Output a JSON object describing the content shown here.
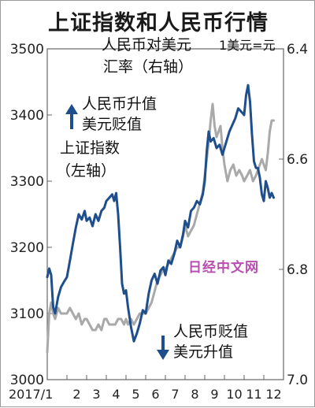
{
  "title": "上证指数和人民币行情",
  "chart_data": {
    "type": "line",
    "title": "上证指数和人民币行情",
    "x_labels": [
      "2017/1",
      "2",
      "3",
      "4",
      "5",
      "6",
      "7",
      "8",
      "9",
      "10",
      "11",
      "12"
    ],
    "left_axis": {
      "ylim": [
        3000,
        3500
      ],
      "ticks": [
        3000,
        3100,
        3200,
        3300,
        3400,
        3500
      ]
    },
    "right_axis": {
      "ylim": [
        7.0,
        6.4
      ],
      "inverted": true,
      "unit": "1美元=元",
      "ticks": [
        "6.4",
        "6.6",
        "6.8",
        "7.0"
      ]
    },
    "series": [
      {
        "name": "上证指数（左轴）",
        "axis": "left",
        "color": "#1f4e8c",
        "points": [
          [
            0.0,
            3155
          ],
          [
            0.1,
            3168
          ],
          [
            0.2,
            3158
          ],
          [
            0.3,
            3110
          ],
          [
            0.4,
            3100
          ],
          [
            0.55,
            3125
          ],
          [
            0.7,
            3140
          ],
          [
            0.85,
            3148
          ],
          [
            1.0,
            3155
          ],
          [
            1.15,
            3180
          ],
          [
            1.3,
            3205
          ],
          [
            1.45,
            3230
          ],
          [
            1.6,
            3250
          ],
          [
            1.75,
            3242
          ],
          [
            1.9,
            3255
          ],
          [
            2.0,
            3240
          ],
          [
            2.15,
            3245
          ],
          [
            2.3,
            3232
          ],
          [
            2.45,
            3250
          ],
          [
            2.6,
            3240
          ],
          [
            2.75,
            3255
          ],
          [
            2.9,
            3260
          ],
          [
            3.0,
            3270
          ],
          [
            3.15,
            3275
          ],
          [
            3.3,
            3280
          ],
          [
            3.4,
            3270
          ],
          [
            3.5,
            3282
          ],
          [
            3.6,
            3250
          ],
          [
            3.7,
            3200
          ],
          [
            3.8,
            3145
          ],
          [
            3.9,
            3130
          ],
          [
            4.0,
            3135
          ],
          [
            4.1,
            3110
          ],
          [
            4.25,
            3080
          ],
          [
            4.4,
            3058
          ],
          [
            4.55,
            3070
          ],
          [
            4.7,
            3085
          ],
          [
            4.85,
            3105
          ],
          [
            5.0,
            3100
          ],
          [
            5.15,
            3130
          ],
          [
            5.3,
            3150
          ],
          [
            5.45,
            3160
          ],
          [
            5.6,
            3145
          ],
          [
            5.75,
            3165
          ],
          [
            5.9,
            3170
          ],
          [
            6.0,
            3158
          ],
          [
            6.15,
            3180
          ],
          [
            6.3,
            3175
          ],
          [
            6.45,
            3190
          ],
          [
            6.6,
            3210
          ],
          [
            6.75,
            3200
          ],
          [
            6.9,
            3220
          ],
          [
            7.0,
            3240
          ],
          [
            7.15,
            3230
          ],
          [
            7.3,
            3255
          ],
          [
            7.45,
            3260
          ],
          [
            7.6,
            3270
          ],
          [
            7.75,
            3265
          ],
          [
            7.9,
            3280
          ],
          [
            8.0,
            3300
          ],
          [
            8.1,
            3345
          ],
          [
            8.2,
            3375
          ],
          [
            8.3,
            3360
          ],
          [
            8.45,
            3365
          ],
          [
            8.6,
            3350
          ],
          [
            8.75,
            3355
          ],
          [
            8.9,
            3340
          ],
          [
            9.0,
            3350
          ],
          [
            9.1,
            3360
          ],
          [
            9.25,
            3375
          ],
          [
            9.4,
            3385
          ],
          [
            9.55,
            3395
          ],
          [
            9.7,
            3410
          ],
          [
            9.85,
            3405
          ],
          [
            10.0,
            3400
          ],
          [
            10.1,
            3430
          ],
          [
            10.2,
            3445
          ],
          [
            10.3,
            3420
          ],
          [
            10.4,
            3370
          ],
          [
            10.5,
            3330
          ],
          [
            10.6,
            3320
          ],
          [
            10.7,
            3320
          ],
          [
            10.8,
            3305
          ],
          [
            10.9,
            3280
          ],
          [
            11.0,
            3270
          ],
          [
            11.1,
            3300
          ],
          [
            11.2,
            3290
          ],
          [
            11.3,
            3275
          ],
          [
            11.4,
            3282
          ],
          [
            11.5,
            3275
          ]
        ]
      },
      {
        "name": "人民币对美元汇率（右轴）",
        "axis": "right",
        "color": "#a9a9a9",
        "points": [
          [
            0.0,
            6.95
          ],
          [
            0.1,
            6.88
          ],
          [
            0.2,
            6.86
          ],
          [
            0.3,
            6.88
          ],
          [
            0.4,
            6.89
          ],
          [
            0.55,
            6.87
          ],
          [
            0.7,
            6.88
          ],
          [
            0.85,
            6.88
          ],
          [
            1.0,
            6.88
          ],
          [
            1.15,
            6.87
          ],
          [
            1.3,
            6.88
          ],
          [
            1.45,
            6.89
          ],
          [
            1.6,
            6.88
          ],
          [
            1.75,
            6.9
          ],
          [
            1.9,
            6.89
          ],
          [
            2.0,
            6.89
          ],
          [
            2.15,
            6.9
          ],
          [
            2.3,
            6.91
          ],
          [
            2.45,
            6.91
          ],
          [
            2.6,
            6.9
          ],
          [
            2.75,
            6.91
          ],
          [
            2.9,
            6.89
          ],
          [
            3.0,
            6.89
          ],
          [
            3.15,
            6.9
          ],
          [
            3.3,
            6.9
          ],
          [
            3.45,
            6.9
          ],
          [
            3.6,
            6.89
          ],
          [
            3.75,
            6.89
          ],
          [
            3.9,
            6.9
          ],
          [
            4.0,
            6.89
          ],
          [
            4.1,
            6.9
          ],
          [
            4.25,
            6.89
          ],
          [
            4.4,
            6.9
          ],
          [
            4.55,
            6.89
          ],
          [
            4.7,
            6.88
          ],
          [
            4.85,
            6.88
          ],
          [
            5.0,
            6.88
          ],
          [
            5.15,
            6.87
          ],
          [
            5.3,
            6.86
          ],
          [
            5.45,
            6.84
          ],
          [
            5.6,
            6.82
          ],
          [
            5.75,
            6.81
          ],
          [
            5.9,
            6.8
          ],
          [
            6.0,
            6.8
          ],
          [
            6.15,
            6.79
          ],
          [
            6.3,
            6.78
          ],
          [
            6.45,
            6.77
          ],
          [
            6.6,
            6.76
          ],
          [
            6.75,
            6.76
          ],
          [
            6.9,
            6.74
          ],
          [
            7.0,
            6.72
          ],
          [
            7.15,
            6.74
          ],
          [
            7.3,
            6.73
          ],
          [
            7.45,
            6.72
          ],
          [
            7.6,
            6.7
          ],
          [
            7.75,
            6.68
          ],
          [
            7.9,
            6.66
          ],
          [
            8.0,
            6.63
          ],
          [
            8.1,
            6.6
          ],
          [
            8.2,
            6.57
          ],
          [
            8.3,
            6.53
          ],
          [
            8.4,
            6.5
          ],
          [
            8.5,
            6.54
          ],
          [
            8.6,
            6.56
          ],
          [
            8.7,
            6.55
          ],
          [
            8.8,
            6.54
          ],
          [
            8.9,
            6.58
          ],
          [
            9.0,
            6.61
          ],
          [
            9.15,
            6.64
          ],
          [
            9.3,
            6.62
          ],
          [
            9.45,
            6.61
          ],
          [
            9.6,
            6.63
          ],
          [
            9.75,
            6.62
          ],
          [
            9.9,
            6.63
          ],
          [
            10.0,
            6.64
          ],
          [
            10.15,
            6.63
          ],
          [
            10.3,
            6.62
          ],
          [
            10.45,
            6.64
          ],
          [
            10.6,
            6.63
          ],
          [
            10.7,
            6.62
          ],
          [
            10.8,
            6.61
          ],
          [
            10.9,
            6.6
          ],
          [
            11.0,
            6.61
          ],
          [
            11.1,
            6.62
          ],
          [
            11.2,
            6.59
          ],
          [
            11.3,
            6.55
          ],
          [
            11.4,
            6.53
          ],
          [
            11.5,
            6.53
          ]
        ]
      }
    ],
    "annotations": {
      "left_series_label": [
        "上证指数",
        "（左轴）"
      ],
      "right_series_label": [
        "人民币对美元",
        "汇率（右轴）"
      ],
      "unit_label": "1美元=元",
      "rmb_up": [
        "人民币升值",
        "美元贬值"
      ],
      "rmb_down": [
        "人民币贬值",
        "美元升值"
      ]
    },
    "grid": false,
    "watermark": "日经中文网"
  }
}
